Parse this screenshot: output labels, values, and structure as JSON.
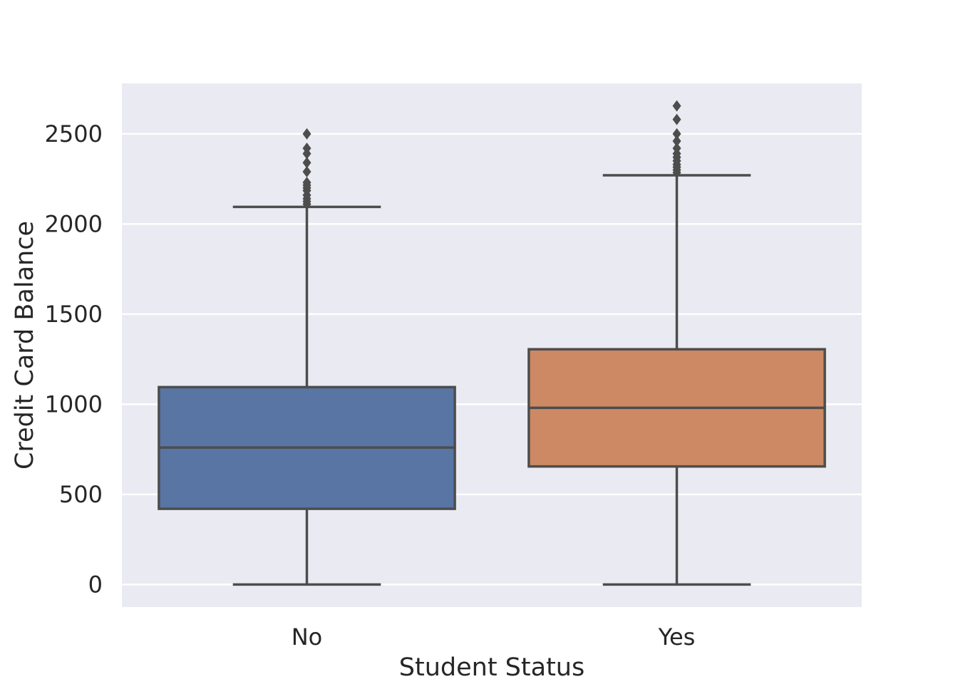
{
  "chart_data": {
    "type": "box",
    "title": "",
    "xlabel": "Student Status",
    "ylabel": "Credit Card Balance",
    "categories": [
      "No",
      "Yes"
    ],
    "ylim": [
      -125,
      2780
    ],
    "yticks": [
      0,
      500,
      1000,
      1500,
      2000,
      2500
    ],
    "grid": true,
    "legend": "none",
    "colors": {
      "background": "#eaeaf2",
      "grid": "#ffffff",
      "line": "#4d4d4d",
      "text": "#262626"
    },
    "series": [
      {
        "category": "No",
        "color": "#5875a4",
        "min": 0,
        "q1": 420,
        "median": 760,
        "q3": 1095,
        "max": 2095,
        "outliers": [
          2110,
          2125,
          2140,
          2160,
          2185,
          2200,
          2215,
          2230,
          2290,
          2340,
          2390,
          2420,
          2500
        ]
      },
      {
        "category": "Yes",
        "color": "#cc8963",
        "min": 0,
        "q1": 655,
        "median": 980,
        "q3": 1305,
        "max": 2270,
        "outliers": [
          2285,
          2300,
          2315,
          2330,
          2350,
          2370,
          2390,
          2420,
          2460,
          2500,
          2580,
          2655
        ]
      }
    ]
  }
}
